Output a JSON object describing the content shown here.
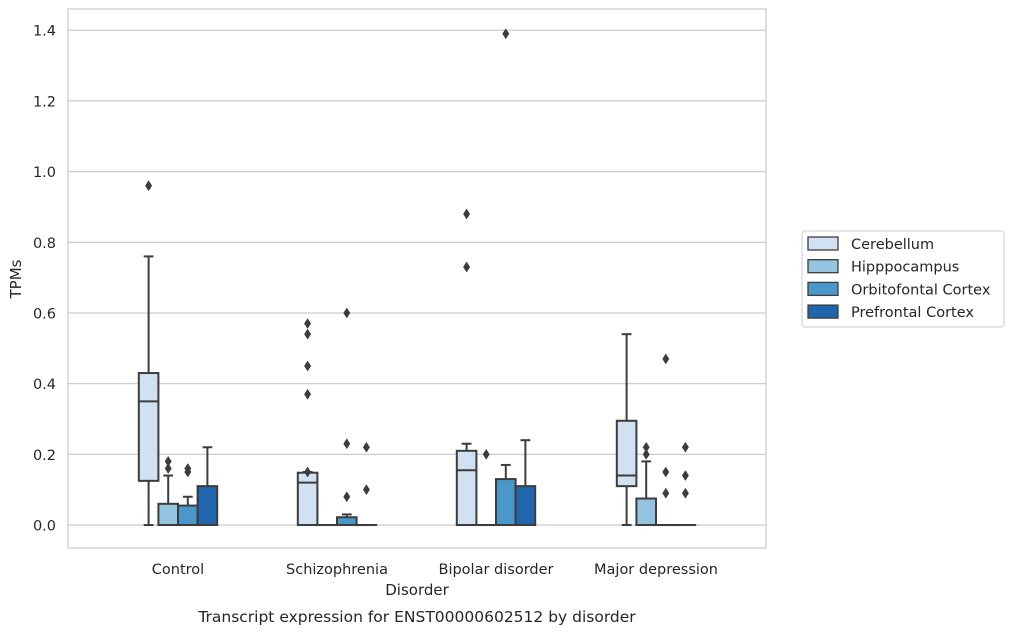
{
  "chart_data": {
    "type": "box",
    "title": "Transcript expression for ENST00000602512 by disorder",
    "xlabel": "Disorder",
    "ylabel": "TPMs",
    "ylim": [
      -0.065,
      1.46
    ],
    "yticks": [
      0.0,
      0.2,
      0.4,
      0.6,
      0.8,
      1.0,
      1.2,
      1.4
    ],
    "ytick_labels": [
      "0.0",
      "0.2",
      "0.4",
      "0.6",
      "0.8",
      "1.0",
      "1.2",
      "1.4"
    ],
    "grid": "horizontal",
    "legend_position": "right",
    "categories": [
      "Control",
      "Schizophrenia",
      "Bipolar disorder",
      "Major depression"
    ],
    "series": [
      {
        "name": "Cerebellum",
        "color": "#d0e1f2",
        "boxes": [
          {
            "q1": 0.125,
            "median": 0.35,
            "q3": 0.43,
            "whislo": 0.0,
            "whishi": 0.76,
            "fliers": [
              0.96
            ]
          },
          {
            "q1": 0.0,
            "median": 0.12,
            "q3": 0.148,
            "whislo": 0.0,
            "whishi": 0.15,
            "fliers": [
              0.15,
              0.37,
              0.45,
              0.54,
              0.57
            ]
          },
          {
            "q1": 0.0,
            "median": 0.155,
            "q3": 0.21,
            "whislo": 0.0,
            "whishi": 0.23,
            "fliers": [
              0.73,
              0.88
            ]
          },
          {
            "q1": 0.11,
            "median": 0.14,
            "q3": 0.295,
            "whislo": 0.0,
            "whishi": 0.54,
            "fliers": []
          }
        ]
      },
      {
        "name": "Hipppocampus",
        "color": "#94c4df",
        "boxes": [
          {
            "q1": 0.0,
            "median": 0.0,
            "q3": 0.06,
            "whislo": 0.0,
            "whishi": 0.14,
            "fliers": [
              0.16,
              0.18
            ]
          },
          {
            "q1": 0.0,
            "median": 0.0,
            "q3": 0.0,
            "whislo": 0.0,
            "whishi": 0.0,
            "fliers": []
          },
          {
            "q1": 0.0,
            "median": 0.0,
            "q3": 0.0,
            "whislo": 0.0,
            "whishi": 0.0,
            "fliers": [
              0.2
            ]
          },
          {
            "q1": 0.0,
            "median": 0.0,
            "q3": 0.075,
            "whislo": 0.0,
            "whishi": 0.18,
            "fliers": [
              0.2,
              0.22
            ]
          }
        ]
      },
      {
        "name": "Orbitofontal Cortex",
        "color": "#4a98c9",
        "boxes": [
          {
            "q1": 0.0,
            "median": 0.0,
            "q3": 0.055,
            "whislo": 0.0,
            "whishi": 0.08,
            "fliers": [
              0.15,
              0.16
            ]
          },
          {
            "q1": 0.0,
            "median": 0.0,
            "q3": 0.022,
            "whislo": 0.0,
            "whishi": 0.03,
            "fliers": [
              0.08,
              0.23,
              0.6
            ]
          },
          {
            "q1": 0.0,
            "median": 0.0,
            "q3": 0.13,
            "whislo": 0.0,
            "whishi": 0.17,
            "fliers": [
              1.39
            ]
          },
          {
            "q1": 0.0,
            "median": 0.0,
            "q3": 0.0,
            "whislo": 0.0,
            "whishi": 0.0,
            "fliers": [
              0.09,
              0.15,
              0.47
            ]
          }
        ]
      },
      {
        "name": "Prefrontal Cortex",
        "color": "#2166ac",
        "boxes": [
          {
            "q1": 0.0,
            "median": 0.0,
            "q3": 0.11,
            "whislo": 0.0,
            "whishi": 0.22,
            "fliers": []
          },
          {
            "q1": 0.0,
            "median": 0.0,
            "q3": 0.0,
            "whislo": 0.0,
            "whishi": 0.0,
            "fliers": [
              0.1,
              0.22
            ]
          },
          {
            "q1": 0.0,
            "median": 0.0,
            "q3": 0.11,
            "whislo": 0.0,
            "whishi": 0.24,
            "fliers": []
          },
          {
            "q1": 0.0,
            "median": 0.0,
            "q3": 0.0,
            "whislo": 0.0,
            "whishi": 0.0,
            "fliers": [
              0.09,
              0.14,
              0.22
            ]
          }
        ]
      }
    ]
  }
}
